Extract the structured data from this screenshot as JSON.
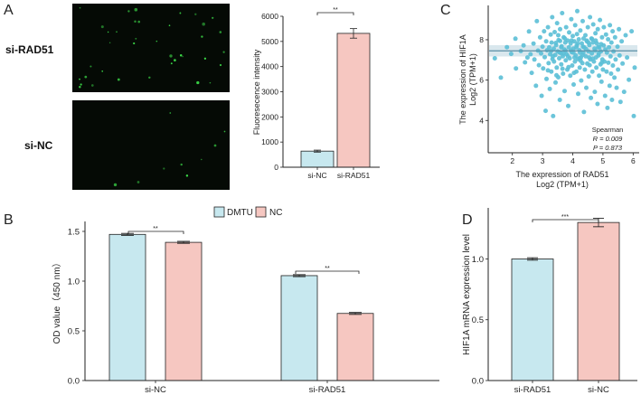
{
  "panel_letters": [
    "A",
    "B",
    "C",
    "D"
  ],
  "colors": {
    "blue_bar": "#c7e8ef",
    "pink_bar": "#f6c7c1",
    "scatter_point": "#5bbfd6",
    "fit_line": "#5a8fa6",
    "fit_band": "#c9dde6",
    "microscopy_bg": "#050a05",
    "microscopy_dot": "#3de04a"
  },
  "microscopy": {
    "top_label": "si-RAD51",
    "bottom_label": "si-NC",
    "top_dot_count": 38,
    "bottom_dot_count": 9
  },
  "panel_a_chart": {
    "type": "bar",
    "categories": [
      "si-NC",
      "si-RAD51"
    ],
    "values": [
      640,
      5320
    ],
    "errors": [
      40,
      190
    ],
    "colors": [
      "blue_bar",
      "pink_bar"
    ],
    "ylabel": "Fluoresecence intensity",
    "ylim": [
      0,
      6000
    ],
    "yticks": [
      0,
      1000,
      2000,
      3000,
      4000,
      5000,
      6000
    ],
    "significance": "**"
  },
  "chart_data": [
    {
      "id": "A",
      "type": "bar",
      "categories": [
        "si-NC",
        "si-RAD51"
      ],
      "values": [
        640,
        5320
      ],
      "errors": [
        40,
        190
      ],
      "ylabel": "Fluoresecence intensity",
      "ylim": [
        0,
        6000
      ],
      "significance": "**"
    },
    {
      "id": "B",
      "type": "bar",
      "categories": [
        "si-NC",
        "si-RAD51"
      ],
      "series": [
        {
          "name": "DMTU",
          "values": [
            1.47,
            1.055
          ],
          "errors": [
            0.01,
            0.01
          ]
        },
        {
          "name": "NC",
          "values": [
            1.39,
            0.675
          ],
          "errors": [
            0.01,
            0.01
          ]
        }
      ],
      "ylabel": "OD value（450 nm）",
      "ylim": [
        0,
        1.6
      ],
      "yticks": [
        "0.0",
        "0.5",
        "1.0",
        "1.5"
      ],
      "legend": "top-center",
      "significance": [
        "**",
        "**"
      ]
    },
    {
      "id": "C",
      "type": "scatter",
      "xlabel": "The expression of RAD51",
      "xlabel_unit": "Log2 (TPM+1)",
      "ylabel": "The expression of HIF1A",
      "ylabel_unit": "Log2 (TPM+1)",
      "xlim": [
        1.2,
        6.2
      ],
      "ylim": [
        2.4,
        9.7
      ],
      "xticks": [
        2,
        3,
        4,
        5,
        6
      ],
      "yticks": [
        4,
        6,
        8
      ],
      "fit": {
        "intercept": 7.45,
        "slope": 0.0
      },
      "stats": {
        "method": "Spearman",
        "R": "R = 0.009",
        "P": "P = 0.873"
      },
      "points": [
        [
          1.42,
          7.08
        ],
        [
          1.62,
          6.12
        ],
        [
          1.82,
          7.63
        ],
        [
          1.96,
          7.3
        ],
        [
          2.1,
          8.05
        ],
        [
          2.12,
          6.58
        ],
        [
          2.28,
          7.44
        ],
        [
          2.37,
          7.72
        ],
        [
          2.42,
          6.88
        ],
        [
          2.5,
          7.12
        ],
        [
          2.55,
          8.41
        ],
        [
          2.6,
          7.28
        ],
        [
          2.64,
          6.36
        ],
        [
          2.7,
          7.81
        ],
        [
          2.73,
          7.02
        ],
        [
          2.78,
          5.72
        ],
        [
          2.81,
          8.92
        ],
        [
          2.85,
          7.46
        ],
        [
          2.88,
          6.74
        ],
        [
          2.92,
          8.12
        ],
        [
          2.95,
          7.32
        ],
        [
          2.97,
          5.22
        ],
        [
          3.0,
          7.66
        ],
        [
          3.02,
          6.58
        ],
        [
          3.05,
          8.42
        ],
        [
          3.07,
          7.14
        ],
        [
          3.1,
          4.48
        ],
        [
          3.12,
          7.92
        ],
        [
          3.13,
          6.06
        ],
        [
          3.15,
          7.48
        ],
        [
          3.18,
          8.62
        ],
        [
          3.2,
          6.84
        ],
        [
          3.22,
          7.62
        ],
        [
          3.24,
          5.56
        ],
        [
          3.25,
          7.28
        ],
        [
          3.27,
          8.26
        ],
        [
          3.29,
          6.42
        ],
        [
          3.3,
          7.86
        ],
        [
          3.32,
          9.12
        ],
        [
          3.33,
          7.04
        ],
        [
          3.35,
          4.22
        ],
        [
          3.37,
          7.56
        ],
        [
          3.38,
          6.92
        ],
        [
          3.4,
          8.38
        ],
        [
          3.42,
          7.24
        ],
        [
          3.43,
          5.88
        ],
        [
          3.45,
          7.74
        ],
        [
          3.47,
          6.62
        ],
        [
          3.48,
          8.82
        ],
        [
          3.5,
          7.42
        ],
        [
          3.52,
          6.14
        ],
        [
          3.53,
          7.98
        ],
        [
          3.55,
          7.08
        ],
        [
          3.57,
          5.02
        ],
        [
          3.58,
          8.52
        ],
        [
          3.6,
          7.34
        ],
        [
          3.62,
          6.78
        ],
        [
          3.63,
          7.68
        ],
        [
          3.65,
          9.32
        ],
        [
          3.67,
          7.18
        ],
        [
          3.68,
          6.32
        ],
        [
          3.7,
          8.12
        ],
        [
          3.72,
          7.52
        ],
        [
          3.73,
          5.46
        ],
        [
          3.75,
          7.86
        ],
        [
          3.77,
          6.98
        ],
        [
          3.78,
          8.62
        ],
        [
          3.8,
          7.28
        ],
        [
          3.82,
          6.52
        ],
        [
          3.83,
          7.96
        ],
        [
          3.85,
          4.72
        ],
        [
          3.87,
          7.62
        ],
        [
          3.88,
          8.36
        ],
        [
          3.9,
          7.08
        ],
        [
          3.92,
          6.22
        ],
        [
          3.93,
          7.82
        ],
        [
          3.95,
          9.02
        ],
        [
          3.97,
          7.38
        ],
        [
          3.98,
          6.72
        ],
        [
          4.0,
          8.18
        ],
        [
          4.02,
          7.56
        ],
        [
          4.03,
          5.78
        ],
        [
          4.05,
          7.92
        ],
        [
          4.07,
          6.92
        ],
        [
          4.08,
          8.72
        ],
        [
          4.1,
          7.22
        ],
        [
          4.12,
          6.42
        ],
        [
          4.13,
          7.72
        ],
        [
          4.15,
          9.42
        ],
        [
          4.17,
          7.04
        ],
        [
          4.18,
          5.32
        ],
        [
          4.2,
          8.02
        ],
        [
          4.22,
          7.48
        ],
        [
          4.23,
          6.62
        ],
        [
          4.25,
          8.46
        ],
        [
          4.27,
          7.12
        ],
        [
          4.28,
          5.98
        ],
        [
          4.3,
          7.82
        ],
        [
          4.32,
          6.84
        ],
        [
          4.33,
          8.92
        ],
        [
          4.35,
          7.36
        ],
        [
          4.37,
          4.42
        ],
        [
          4.38,
          7.62
        ],
        [
          4.4,
          6.52
        ],
        [
          4.42,
          8.22
        ],
        [
          4.43,
          7.18
        ],
        [
          4.45,
          5.62
        ],
        [
          4.47,
          7.92
        ],
        [
          4.48,
          6.82
        ],
        [
          4.5,
          8.62
        ],
        [
          4.52,
          7.42
        ],
        [
          4.53,
          6.18
        ],
        [
          4.55,
          7.74
        ],
        [
          4.57,
          9.12
        ],
        [
          4.58,
          7.02
        ],
        [
          4.6,
          5.12
        ],
        [
          4.62,
          8.06
        ],
        [
          4.63,
          7.32
        ],
        [
          4.65,
          6.42
        ],
        [
          4.67,
          7.86
        ],
        [
          4.68,
          8.76
        ],
        [
          4.7,
          6.92
        ],
        [
          4.72,
          7.56
        ],
        [
          4.73,
          5.42
        ],
        [
          4.75,
          8.32
        ],
        [
          4.77,
          7.12
        ],
        [
          4.78,
          6.62
        ],
        [
          4.8,
          7.82
        ],
        [
          4.82,
          4.82
        ],
        [
          4.83,
          8.52
        ],
        [
          4.85,
          7.22
        ],
        [
          4.87,
          6.22
        ],
        [
          4.88,
          7.62
        ],
        [
          4.9,
          8.98
        ],
        [
          4.92,
          6.78
        ],
        [
          4.93,
          7.42
        ],
        [
          4.95,
          5.92
        ],
        [
          4.97,
          8.12
        ],
        [
          4.98,
          7.02
        ],
        [
          5.0,
          6.52
        ],
        [
          5.02,
          7.72
        ],
        [
          5.03,
          8.62
        ],
        [
          5.05,
          6.92
        ],
        [
          5.07,
          5.22
        ],
        [
          5.08,
          7.52
        ],
        [
          5.1,
          8.26
        ],
        [
          5.12,
          6.42
        ],
        [
          5.13,
          7.36
        ],
        [
          5.15,
          4.62
        ],
        [
          5.17,
          8.02
        ],
        [
          5.18,
          6.86
        ],
        [
          5.2,
          7.62
        ],
        [
          5.22,
          5.72
        ],
        [
          5.23,
          8.72
        ],
        [
          5.25,
          7.18
        ],
        [
          5.27,
          6.32
        ],
        [
          5.28,
          7.86
        ],
        [
          5.3,
          5.02
        ],
        [
          5.32,
          8.42
        ],
        [
          5.33,
          6.72
        ],
        [
          5.35,
          7.42
        ],
        [
          5.38,
          6.12
        ],
        [
          5.4,
          8.12
        ],
        [
          5.42,
          7.02
        ],
        [
          5.45,
          5.62
        ],
        [
          5.48,
          7.66
        ],
        [
          5.5,
          6.52
        ],
        [
          5.53,
          8.52
        ],
        [
          5.55,
          7.22
        ],
        [
          5.58,
          4.92
        ],
        [
          5.62,
          7.92
        ],
        [
          5.65,
          6.82
        ],
        [
          5.7,
          5.42
        ],
        [
          5.75,
          8.22
        ],
        [
          5.8,
          7.12
        ],
        [
          5.86,
          6.02
        ],
        [
          5.95,
          8.42
        ],
        [
          6.02,
          4.22
        ],
        [
          6.05,
          6.62
        ],
        [
          3.18,
          6.48
        ],
        [
          3.34,
          7.18
        ],
        [
          3.46,
          6.24
        ],
        [
          3.58,
          7.94
        ],
        [
          3.66,
          6.56
        ],
        [
          3.74,
          8.06
        ],
        [
          3.86,
          6.64
        ],
        [
          3.94,
          7.46
        ],
        [
          4.04,
          6.36
        ],
        [
          4.14,
          8.28
        ],
        [
          4.26,
          6.96
        ],
        [
          4.34,
          7.66
        ],
        [
          4.46,
          7.96
        ],
        [
          4.56,
          6.74
        ],
        [
          4.66,
          7.06
        ],
        [
          4.76,
          7.96
        ],
        [
          4.86,
          7.32
        ],
        [
          4.96,
          6.86
        ],
        [
          3.52,
          8.22
        ],
        [
          3.76,
          7.46
        ],
        [
          4.06,
          7.12
        ],
        [
          4.24,
          7.36
        ],
        [
          4.44,
          7.54
        ],
        [
          4.64,
          8.04
        ],
        [
          3.28,
          7.44
        ],
        [
          3.62,
          7.62
        ],
        [
          3.84,
          7.18
        ],
        [
          4.16,
          7.82
        ],
        [
          4.36,
          8.06
        ],
        [
          4.54,
          7.12
        ],
        [
          4.74,
          7.46
        ],
        [
          4.94,
          7.78
        ],
        [
          3.44,
          7.84
        ],
        [
          3.96,
          7.96
        ],
        [
          4.12,
          7.62
        ],
        [
          4.52,
          7.86
        ],
        [
          3.7,
          7.32
        ],
        [
          4.02,
          7.36
        ],
        [
          4.32,
          7.24
        ],
        [
          4.84,
          7.62
        ],
        [
          3.56,
          7.38
        ],
        [
          4.22,
          7.08
        ]
      ]
    },
    {
      "id": "D",
      "type": "bar",
      "categories": [
        "si-RAD51",
        "si-NC"
      ],
      "values": [
        1.0,
        1.3
      ],
      "errors": [
        0.01,
        0.035
      ],
      "ylabel": "HIF1A mRNA expression level",
      "ylim": [
        0,
        1.42
      ],
      "yticks": [
        "0.0",
        "0.5",
        "1.0"
      ],
      "significance": "***"
    }
  ]
}
